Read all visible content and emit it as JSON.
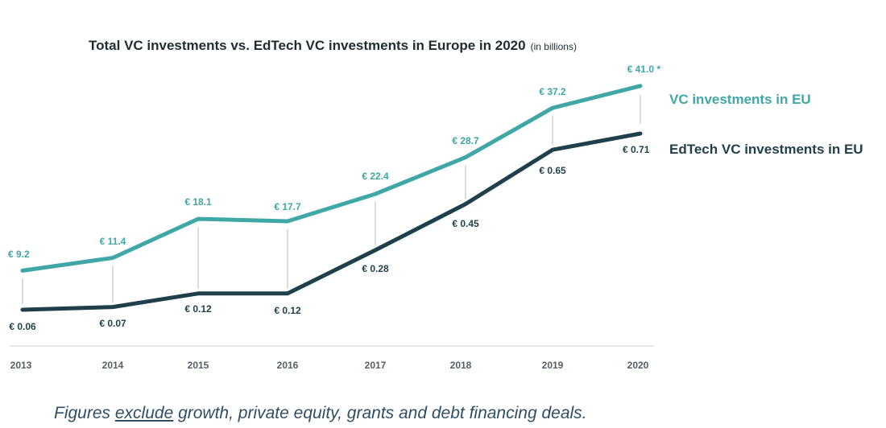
{
  "chart_data": {
    "type": "line",
    "title": "Total VC investments vs. EdTech VC investments in Europe in 2020",
    "title_note": "(in billions)",
    "categories": [
      "2013",
      "2014",
      "2015",
      "2016",
      "2017",
      "2018",
      "2019",
      "2020"
    ],
    "series": [
      {
        "name": "VC investments in EU",
        "color": "#3fa7a5",
        "values": [
          9.2,
          11.4,
          18.1,
          17.7,
          22.4,
          28.7,
          37.2,
          41.0
        ],
        "labels": [
          "€ 9.2",
          "€ 11.4",
          "€ 18.1",
          "€ 17.7",
          "€ 22.4",
          "€ 28.7",
          "€ 37.2",
          "€ 41.0 *"
        ]
      },
      {
        "name": "EdTech VC investments in EU",
        "color": "#1f3f4a",
        "values": [
          0.06,
          0.07,
          0.12,
          0.12,
          0.28,
          0.45,
          0.65,
          0.71
        ],
        "labels": [
          "€ 0.06",
          "€ 0.07",
          "€ 0.12",
          "€ 0.12",
          "€ 0.28",
          "€ 0.45",
          "€ 0.65",
          "€ 0.71"
        ]
      }
    ],
    "legend_position": "right"
  },
  "footnote": {
    "before": "Figures ",
    "underlined": "exclude",
    "after": " growth, private equity, grants and debt financing deals."
  }
}
